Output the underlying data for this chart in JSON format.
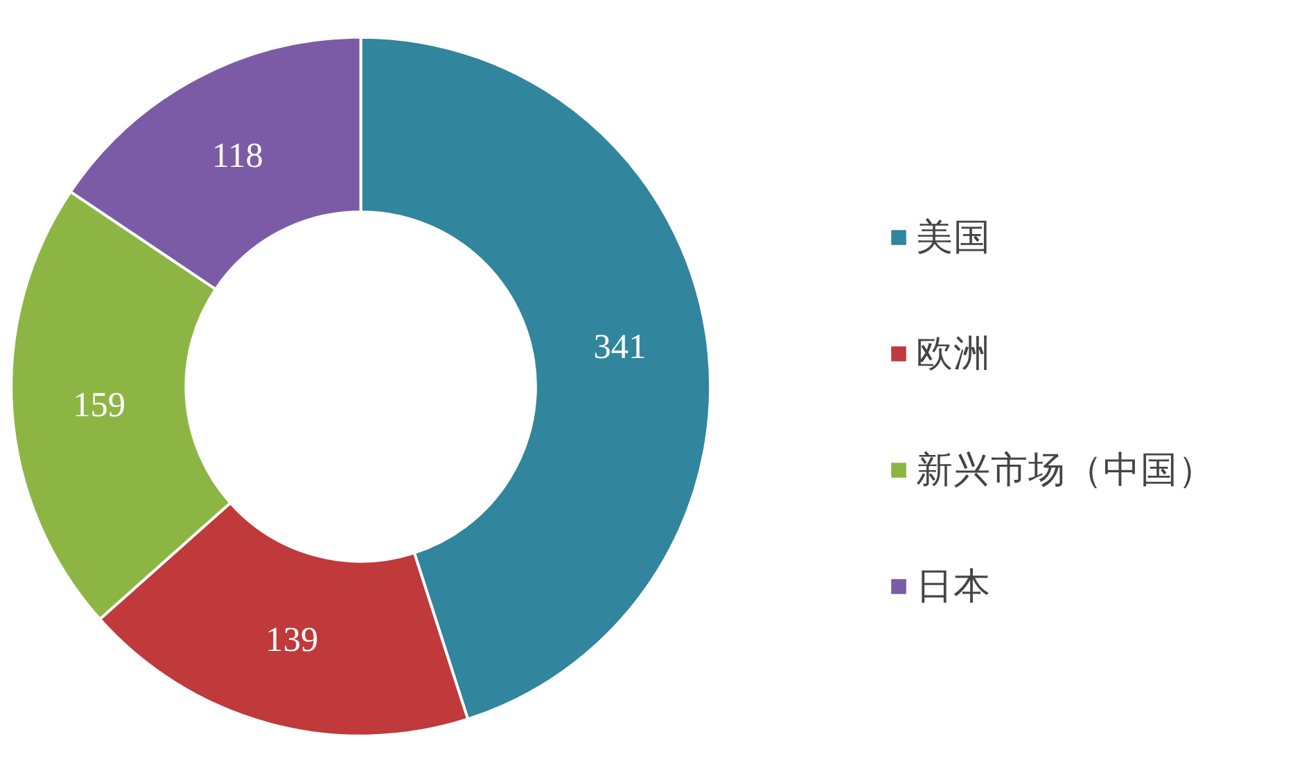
{
  "chart_data": {
    "type": "donut",
    "categories": [
      "美国",
      "欧洲",
      "新兴市场（中国）",
      "日本"
    ],
    "values": [
      341,
      139,
      159,
      118
    ],
    "colors": [
      "#31859c",
      "#c0393b",
      "#8db544",
      "#7b5ba6"
    ],
    "data_labels": true,
    "legend": "right"
  }
}
